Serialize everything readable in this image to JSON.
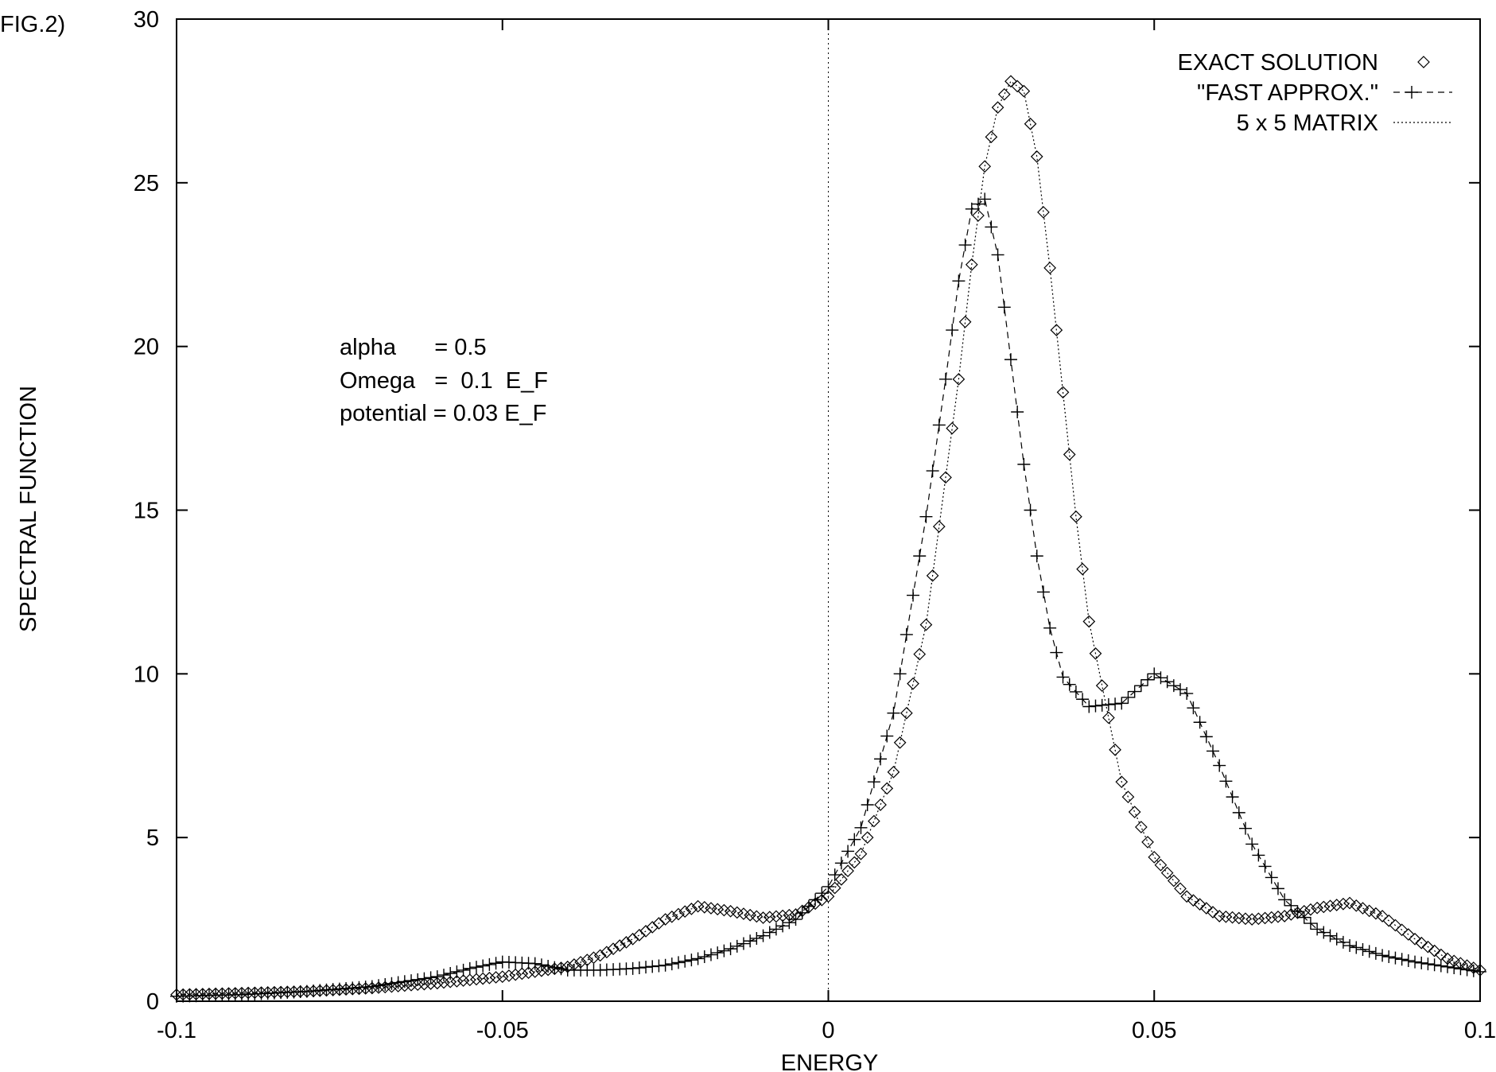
{
  "figure_label": "FIG.2)",
  "annotations": [
    "alpha      = 0.5",
    "Omega   =  0.1  E_F",
    "potential = 0.03 E_F"
  ],
  "chart_data": {
    "type": "scatter",
    "title": "",
    "xlabel": "ENERGY",
    "ylabel": "SPECTRAL FUNCTION",
    "xlim": [
      -0.1,
      0.1
    ],
    "ylim": [
      0,
      30
    ],
    "x_ticks": [
      -0.1,
      -0.05,
      0,
      0.05,
      0.1
    ],
    "x_tick_labels": [
      "-0.1",
      "-0.05",
      "0",
      "0.05",
      "0.1"
    ],
    "y_ticks": [
      0,
      5,
      10,
      15,
      20,
      25,
      30
    ],
    "y_tick_labels": [
      "0",
      "5",
      "10",
      "15",
      "20",
      "25",
      "30"
    ],
    "grid": false,
    "legend_position": "top-right",
    "reference_line": {
      "x": 0,
      "style": "dotted"
    },
    "series": [
      {
        "name": "EXACT SOLUTION",
        "marker": "diamond",
        "line": "none",
        "x": [
          -0.1,
          -0.09,
          -0.08,
          -0.07,
          -0.06,
          -0.05,
          -0.04,
          -0.035,
          -0.03,
          -0.025,
          -0.02,
          -0.015,
          -0.01,
          -0.005,
          0,
          0.005,
          0.01,
          0.015,
          0.02,
          0.022,
          0.024,
          0.026,
          0.028,
          0.03,
          0.032,
          0.034,
          0.036,
          0.038,
          0.04,
          0.045,
          0.05,
          0.055,
          0.06,
          0.065,
          0.07,
          0.075,
          0.08,
          0.085,
          0.09,
          0.095,
          0.1
        ],
        "y": [
          0.2,
          0.25,
          0.3,
          0.4,
          0.55,
          0.75,
          1.05,
          1.4,
          1.9,
          2.5,
          2.9,
          2.75,
          2.55,
          2.65,
          3.2,
          4.5,
          7.0,
          11.5,
          19.0,
          22.5,
          25.5,
          27.3,
          28.1,
          27.8,
          25.8,
          22.4,
          18.6,
          14.8,
          11.6,
          6.7,
          4.4,
          3.2,
          2.6,
          2.5,
          2.6,
          2.85,
          3.0,
          2.6,
          1.9,
          1.3,
          0.95
        ]
      },
      {
        "name": "\"FAST APPROX.\"",
        "marker": "plus",
        "line": "dashed",
        "x": [
          -0.1,
          -0.09,
          -0.08,
          -0.07,
          -0.06,
          -0.055,
          -0.05,
          -0.045,
          -0.04,
          -0.035,
          -0.03,
          -0.025,
          -0.02,
          -0.015,
          -0.01,
          -0.005,
          0,
          0.005,
          0.01,
          0.015,
          0.018,
          0.02,
          0.022,
          0.024,
          0.026,
          0.028,
          0.03,
          0.032,
          0.034,
          0.036,
          0.04,
          0.045,
          0.05,
          0.055,
          0.06,
          0.065,
          0.07,
          0.075,
          0.08,
          0.085,
          0.09,
          0.095,
          0.1
        ],
        "y": [
          0.15,
          0.2,
          0.3,
          0.45,
          0.75,
          1.0,
          1.2,
          1.15,
          0.95,
          0.95,
          1.0,
          1.1,
          1.3,
          1.6,
          2.0,
          2.5,
          3.5,
          5.3,
          8.8,
          14.8,
          19.0,
          22.0,
          24.2,
          24.5,
          22.8,
          19.6,
          16.4,
          13.6,
          11.4,
          9.9,
          9.0,
          9.1,
          10.0,
          9.4,
          7.2,
          4.8,
          3.1,
          2.2,
          1.7,
          1.4,
          1.2,
          1.05,
          0.9
        ]
      },
      {
        "name": "5 x 5 MATRIX",
        "marker": "none",
        "line": "dotted",
        "x": [
          -0.1,
          -0.09,
          -0.08,
          -0.07,
          -0.06,
          -0.05,
          -0.04,
          -0.035,
          -0.03,
          -0.025,
          -0.02,
          -0.015,
          -0.01,
          -0.005,
          0,
          0.005,
          0.01,
          0.015,
          0.02,
          0.022,
          0.024,
          0.026,
          0.028,
          0.03,
          0.032,
          0.034,
          0.036,
          0.038,
          0.04,
          0.045,
          0.05,
          0.055,
          0.06,
          0.065,
          0.07,
          0.075,
          0.08,
          0.085,
          0.09,
          0.095,
          0.1
        ],
        "y": [
          0.2,
          0.25,
          0.3,
          0.4,
          0.55,
          0.75,
          1.05,
          1.4,
          1.9,
          2.5,
          2.9,
          2.75,
          2.55,
          2.65,
          3.2,
          4.5,
          7.0,
          11.5,
          19.0,
          22.5,
          25.5,
          27.3,
          28.1,
          27.8,
          25.8,
          22.4,
          18.6,
          14.8,
          11.6,
          6.7,
          4.4,
          3.2,
          2.6,
          2.5,
          2.6,
          2.85,
          3.0,
          2.6,
          1.9,
          1.3,
          0.95
        ]
      }
    ]
  }
}
